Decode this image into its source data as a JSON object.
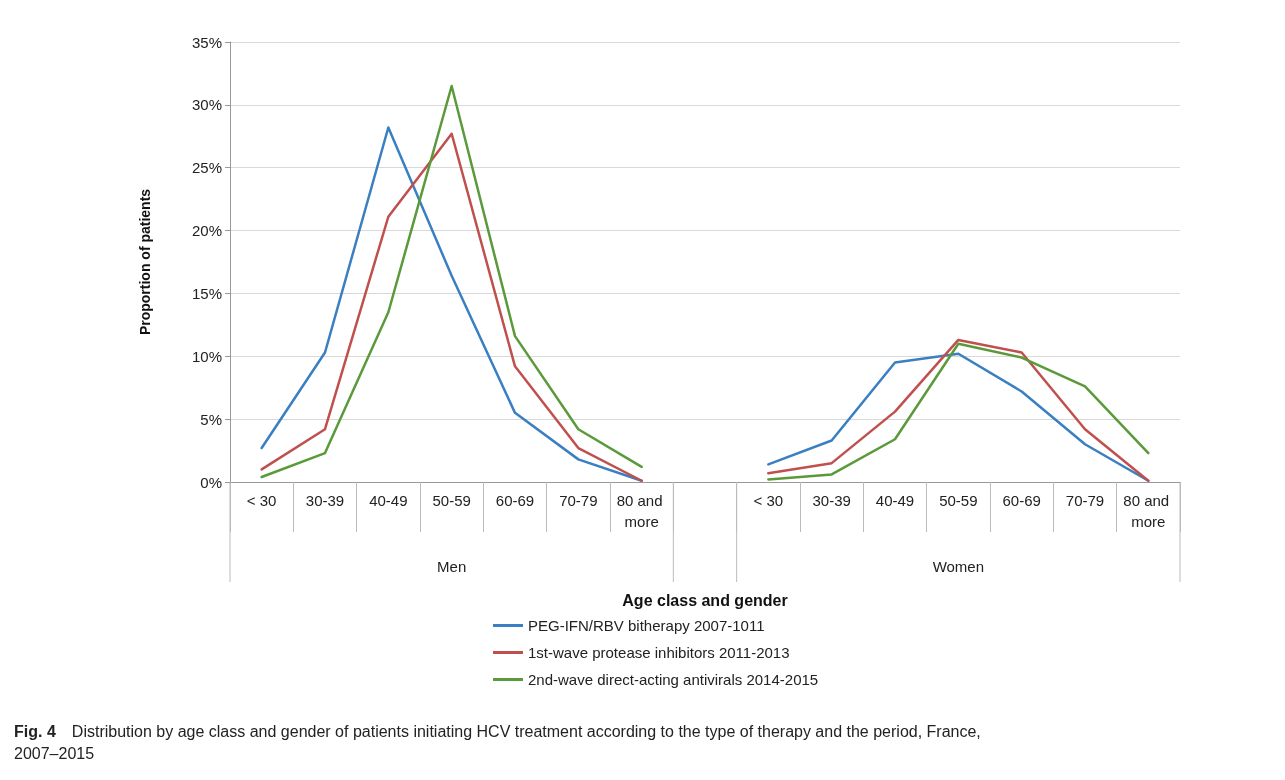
{
  "chart_data": {
    "type": "line",
    "xlabel": "Age class and gender",
    "ylabel": "Proportion of patients",
    "categories": [
      "< 30",
      "30-39",
      "40-49",
      "50-59",
      "60-69",
      "70-79",
      "80 and more",
      null,
      "< 30",
      "30-39",
      "40-49",
      "50-59",
      "60-69",
      "70-79",
      "80 and more"
    ],
    "series": [
      {
        "name": "PEG-IFN/RBV bitherapy 2007-1011",
        "color": "#3a7fc1",
        "values": [
          2.7,
          10.3,
          28.2,
          16.4,
          5.5,
          1.8,
          0.1,
          null,
          1.4,
          3.3,
          9.5,
          10.2,
          7.2,
          3.0,
          0.1
        ]
      },
      {
        "name": "1st-wave protease inhibitors 2011-2013",
        "color": "#c0504d",
        "values": [
          1.0,
          4.2,
          21.1,
          27.7,
          9.2,
          2.7,
          0.1,
          null,
          0.7,
          1.5,
          5.6,
          11.3,
          10.3,
          4.2,
          0.1
        ]
      },
      {
        "name": "2nd-wave direct-acting antivirals 2014-2015",
        "color": "#5a9a3a",
        "values": [
          0.4,
          2.3,
          13.5,
          31.5,
          11.6,
          4.2,
          1.2,
          null,
          0.2,
          0.6,
          3.4,
          11.0,
          9.9,
          7.6,
          2.3
        ]
      }
    ],
    "ylim": [
      0,
      35
    ],
    "yticks": [
      {
        "value": 0,
        "label": "0%"
      },
      {
        "value": 5,
        "label": "5%"
      },
      {
        "value": 10,
        "label": "10%"
      },
      {
        "value": 15,
        "label": "15%"
      },
      {
        "value": 20,
        "label": "20%"
      },
      {
        "value": 25,
        "label": "25%"
      },
      {
        "value": 30,
        "label": "30%"
      },
      {
        "value": 35,
        "label": "35%"
      }
    ],
    "grid": "y",
    "legend": "bottom",
    "marker": "none",
    "line_style": "solid",
    "annotations": [
      "Men",
      "Women",
      "Fig. 4 Distribution by age class and gender of patients initiating HCV treatment according to the type of therapy and the period, France, 2007–2015"
    ]
  }
}
